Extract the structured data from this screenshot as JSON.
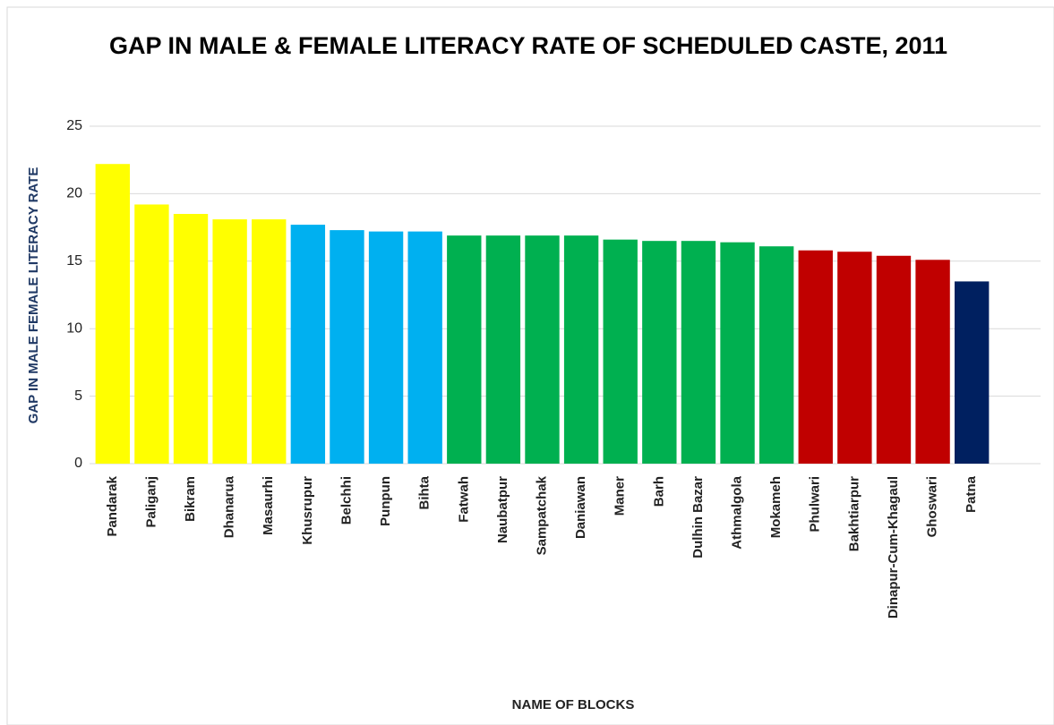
{
  "chart_data": {
    "type": "bar",
    "title": "GAP IN MALE & FEMALE LITERACY RATE OF SCHEDULED CASTE, 2011",
    "x_label": "NAME OF BLOCKS",
    "y_label": "GAP IN MALE FEMALE LITERACY RATE",
    "categories": [
      "Pandarak",
      "Paliganj",
      "Bikram",
      "Dhanarua",
      "Masaurhi",
      "Khusrupur",
      "Belchhi",
      "Punpun",
      "Bihta",
      "Fatwah",
      "Naubatpur",
      "Sampatchak",
      "Daniawan",
      "Maner",
      "Barh",
      "Dulhin Bazar",
      "Athmalgola",
      "Mokameh",
      "Phulwari",
      "Bakhtiarpur",
      "Dinapur-Cum-Khagaul",
      "Ghoswari",
      "Patna"
    ],
    "values": [
      22.2,
      19.2,
      18.5,
      18.1,
      18.1,
      17.7,
      17.3,
      17.2,
      17.2,
      16.9,
      16.9,
      16.9,
      16.9,
      16.6,
      16.5,
      16.5,
      16.4,
      16.1,
      15.8,
      15.7,
      15.4,
      15.1,
      13.5
    ],
    "colors": [
      "#ffff00",
      "#ffff00",
      "#ffff00",
      "#ffff00",
      "#ffff00",
      "#00b0f0",
      "#00b0f0",
      "#00b0f0",
      "#00b0f0",
      "#00b050",
      "#00b050",
      "#00b050",
      "#00b050",
      "#00b050",
      "#00b050",
      "#00b050",
      "#00b050",
      "#00b050",
      "#c00000",
      "#c00000",
      "#c00000",
      "#c00000",
      "#002060"
    ],
    "ylim": [
      0,
      25
    ],
    "yticks": [
      0,
      5,
      10,
      15,
      20,
      25
    ],
    "grid": true
  }
}
